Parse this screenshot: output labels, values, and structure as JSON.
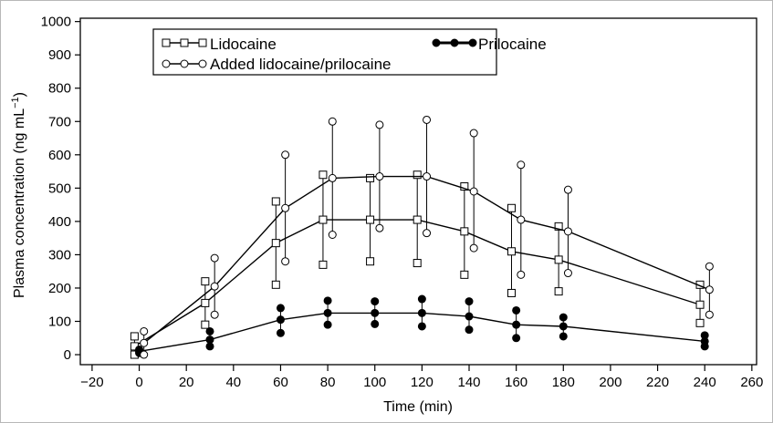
{
  "chart_data": {
    "type": "line",
    "xlabel": "Time (min)",
    "ylabel": "Plasma concentration (ng mL",
    "ylabel_sup": "−1",
    "ylabel_close": ")",
    "xlim": [
      -25,
      262
    ],
    "ylim": [
      -30,
      1010
    ],
    "xticks": [
      -20,
      0,
      20,
      40,
      60,
      80,
      100,
      120,
      140,
      160,
      180,
      200,
      220,
      240,
      260
    ],
    "xtick_labels": [
      "−20",
      "0",
      "20",
      "40",
      "60",
      "80",
      "100",
      "120",
      "140",
      "160",
      "180",
      "200",
      "220",
      "240",
      "260"
    ],
    "yticks": [
      0,
      100,
      200,
      300,
      400,
      500,
      600,
      700,
      800,
      900,
      1000
    ],
    "ytick_labels": [
      "0",
      "100",
      "200",
      "300",
      "400",
      "500",
      "600",
      "700",
      "800",
      "900",
      "1000"
    ],
    "grid": false,
    "legend_placement": "top",
    "series": [
      {
        "name": "Lidocaine",
        "marker": "square",
        "x": [
          -2,
          28,
          58,
          78,
          98,
          118,
          138,
          158,
          178,
          238
        ],
        "y": [
          25,
          155,
          335,
          405,
          405,
          405,
          370,
          310,
          285,
          150
        ],
        "y_low": [
          0,
          90,
          210,
          270,
          280,
          275,
          240,
          185,
          190,
          95
        ],
        "y_high": [
          55,
          220,
          460,
          540,
          530,
          540,
          505,
          440,
          385,
          210
        ]
      },
      {
        "name": "Prilocaine",
        "marker": "filled-circle",
        "x": [
          0,
          30,
          60,
          80,
          100,
          120,
          140,
          160,
          180,
          240
        ],
        "y": [
          10,
          45,
          105,
          125,
          125,
          125,
          115,
          90,
          85,
          40
        ],
        "y_low": [
          5,
          25,
          65,
          90,
          92,
          85,
          75,
          50,
          55,
          25
        ],
        "y_high": [
          15,
          70,
          140,
          162,
          160,
          167,
          160,
          133,
          112,
          58
        ]
      },
      {
        "name": "Added lidocaine/prilocaine",
        "marker": "open-circle",
        "x": [
          2,
          32,
          62,
          82,
          102,
          122,
          142,
          162,
          182,
          242
        ],
        "y": [
          35,
          205,
          440,
          530,
          535,
          535,
          490,
          405,
          370,
          195
        ],
        "y_low": [
          0,
          120,
          280,
          360,
          380,
          365,
          320,
          240,
          245,
          120
        ],
        "y_high": [
          70,
          290,
          600,
          700,
          690,
          705,
          665,
          570,
          495,
          265
        ]
      }
    ]
  }
}
